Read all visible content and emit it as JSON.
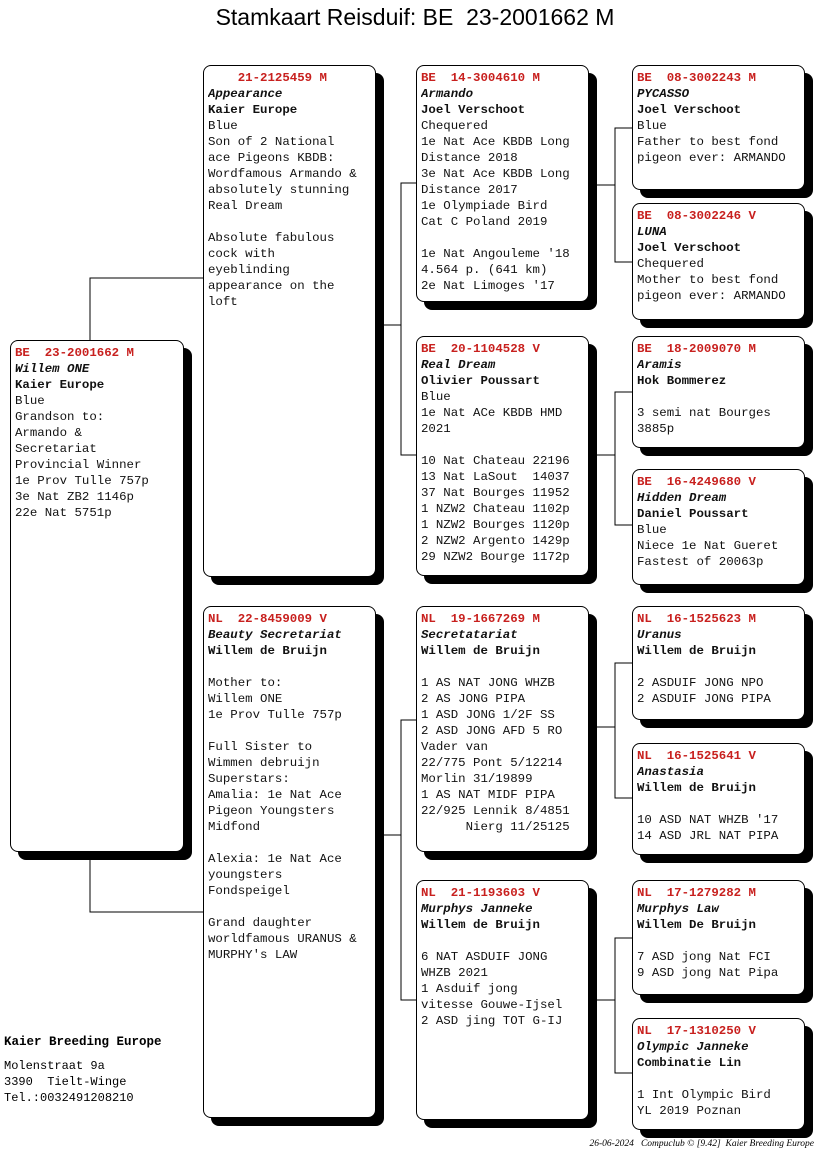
{
  "title": "Stamkaart Reisduif: BE  23-2001662 M",
  "colors": {
    "ring": "#c8201e",
    "shadow": "#000000"
  },
  "pedigree": {
    "subject": {
      "country": "BE",
      "ring": "23-2001662 M",
      "name": "Willem ONE",
      "owner": "Kaier Europe",
      "lines": [
        "Blue",
        "Grandson to:",
        "Armando &",
        "Secretariat",
        "Provincial Winner",
        "1e Prov Tulle 757p",
        "3e Nat ZB2 1146p",
        "22e Nat 5751p"
      ]
    },
    "sire": {
      "country": "",
      "ring": "21-2125459 M",
      "name": "Appearance",
      "owner": "Kaier Europe",
      "lines": [
        "Blue",
        "Son of 2 National",
        "ace Pigeons KBDB:",
        "Wordfamous Armando &",
        "absolutely stunning",
        "Real Dream",
        "",
        "Absolute fabulous",
        "cock with",
        "eyeblinding",
        "appearance on the",
        "loft"
      ]
    },
    "dam": {
      "country": "NL",
      "ring": "22-8459009 V",
      "name": "Beauty Secretariat",
      "owner": "Willem de Bruijn",
      "lines": [
        "",
        "Mother to:",
        "Willem ONE",
        "1e Prov Tulle 757p",
        "",
        "Full Sister to",
        "Wimmen debruijn",
        "Superstars:",
        "Amalia: 1e Nat Ace",
        "Pigeon Youngsters",
        "Midfond",
        "",
        "Alexia: 1e Nat Ace",
        "youngsters",
        "Fondspeigel",
        "",
        "Grand daughter",
        "worldfamous URANUS &",
        "MURPHY's LAW"
      ]
    },
    "sire_sire": {
      "country": "BE",
      "ring": "14-3004610 M",
      "name": "Armando",
      "owner": "Joel Verschoot",
      "lines": [
        "Chequered",
        "1e Nat Ace KBDB Long",
        "Distance 2018",
        "3e Nat Ace KBDB Long",
        "Distance 2017",
        "1e Olympiade Bird",
        "Cat C Poland 2019",
        "",
        "1e Nat Angouleme '18",
        "4.564 p. (641 km)",
        "2e Nat Limoges '17"
      ]
    },
    "sire_dam": {
      "country": "BE",
      "ring": "20-1104528 V",
      "name": "Real Dream",
      "owner": "Olivier Poussart",
      "lines": [
        "Blue",
        "1e Nat ACe KBDB HMD",
        "2021",
        "",
        "10 Nat Chateau 22196",
        "13 Nat LaSout  14037",
        "37 Nat Bourges 11952",
        "1 NZW2 Chateau 1102p",
        "1 NZW2 Bourges 1120p",
        "2 NZW2 Argento 1429p",
        "29 NZW2 Bourge 1172p"
      ]
    },
    "dam_sire": {
      "country": "NL",
      "ring": "19-1667269 M",
      "name": "Secretatariat",
      "owner": "Willem de Bruijn",
      "lines": [
        "",
        "1 AS NAT JONG WHZB",
        "2 AS JONG PIPA",
        "1 ASD JONG 1/2F SS",
        "2 ASD JONG AFD 5 RO",
        "Vader van",
        "22/775 Pont 5/12214",
        "Morlin 31/19899",
        "1 AS NAT MIDF PIPA",
        "22/925 Lennik 8/4851",
        "      Nierg 11/25125"
      ]
    },
    "dam_dam": {
      "country": "NL",
      "ring": "21-1193603 V",
      "name": "Murphys Janneke",
      "owner": "Willem de Bruijn",
      "lines": [
        "",
        "6 NAT ASDUIF JONG",
        "WHZB 2021",
        "1 Asduif jong",
        "vitesse Gouwe-Ijsel",
        "2 ASD jing TOT G-IJ"
      ]
    },
    "ss_sire": {
      "country": "BE",
      "ring": "08-3002243 M",
      "name": "PYCASSO",
      "owner": "Joel Verschoot",
      "lines": [
        "Blue",
        "Father to best fond",
        "pigeon ever: ARMANDO"
      ]
    },
    "ss_dam": {
      "country": "BE",
      "ring": "08-3002246 V",
      "name": "LUNA",
      "owner": "Joel Verschoot",
      "lines": [
        "Chequered",
        "Mother to best fond",
        "pigeon ever: ARMANDO"
      ]
    },
    "sd_sire": {
      "country": "BE",
      "ring": "18-2009070 M",
      "name": "Aramis",
      "owner": "Hok Bommerez",
      "lines": [
        "",
        "3 semi nat Bourges",
        "3885p"
      ]
    },
    "sd_dam": {
      "country": "BE",
      "ring": "16-4249680 V",
      "name": "Hidden Dream",
      "owner": "Daniel Poussart",
      "lines": [
        "Blue",
        "Niece 1e Nat Gueret",
        "Fastest of 20063p"
      ]
    },
    "ds_sire": {
      "country": "NL",
      "ring": "16-1525623 M",
      "name": "Uranus",
      "owner": "Willem de Bruijn",
      "lines": [
        "",
        "2 ASDUIF JONG NPO",
        "2 ASDUIF JONG PIPA"
      ]
    },
    "ds_dam": {
      "country": "NL",
      "ring": "16-1525641 V",
      "name": "Anastasia",
      "owner": "Willem de Bruijn",
      "lines": [
        "",
        "10 ASD NAT WHZB '17",
        "14 ASD JRL NAT PIPA"
      ]
    },
    "dd_sire": {
      "country": "NL",
      "ring": "17-1279282 M",
      "name": "Murphys Law",
      "owner": "Willem De Bruijn",
      "lines": [
        "",
        "7 ASD jong Nat FCI",
        "9 ASD jong Nat Pipa"
      ]
    },
    "dd_dam": {
      "country": "NL",
      "ring": "17-1310250 V",
      "name": "Olympic Janneke",
      "owner": "Combinatie Lin",
      "lines": [
        "",
        "1 Int Olympic Bird",
        "YL 2019 Poznan"
      ]
    }
  },
  "breeder": {
    "name": "Kaier Breeding Europe",
    "address": [
      "Molenstraat 9a",
      "3390  Tielt-Winge",
      "Tel.:0032491208210"
    ]
  },
  "footer": {
    "date": "26-06-2024",
    "software": "Compuclub © [9.42]",
    "owner": "Kaier Breeding Europe"
  }
}
